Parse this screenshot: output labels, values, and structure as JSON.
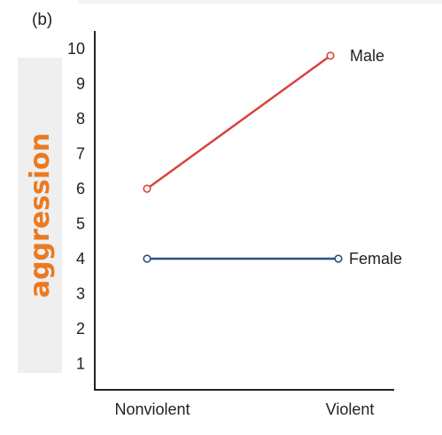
{
  "panel_label": "(b)",
  "colors": {
    "male": "#d8443c",
    "female": "#2e4f82",
    "ylabel": "#ea7a22",
    "ylabel_band": "#efefef",
    "axis": "#222222",
    "top_band": "#f4f4f4"
  },
  "chart_data": {
    "type": "line",
    "categories": [
      "Nonviolent",
      "Violent"
    ],
    "series": [
      {
        "name": "Male",
        "values": [
          6,
          9.8
        ]
      },
      {
        "name": "Female",
        "values": [
          4,
          4
        ]
      }
    ],
    "ylabel": "aggression",
    "xlabel": "",
    "yticks": [
      1,
      2,
      3,
      4,
      5,
      6,
      7,
      8,
      9,
      10
    ],
    "ylim": [
      0,
      10
    ],
    "grid": false,
    "legend": "none (series labels placed at line ends)"
  }
}
